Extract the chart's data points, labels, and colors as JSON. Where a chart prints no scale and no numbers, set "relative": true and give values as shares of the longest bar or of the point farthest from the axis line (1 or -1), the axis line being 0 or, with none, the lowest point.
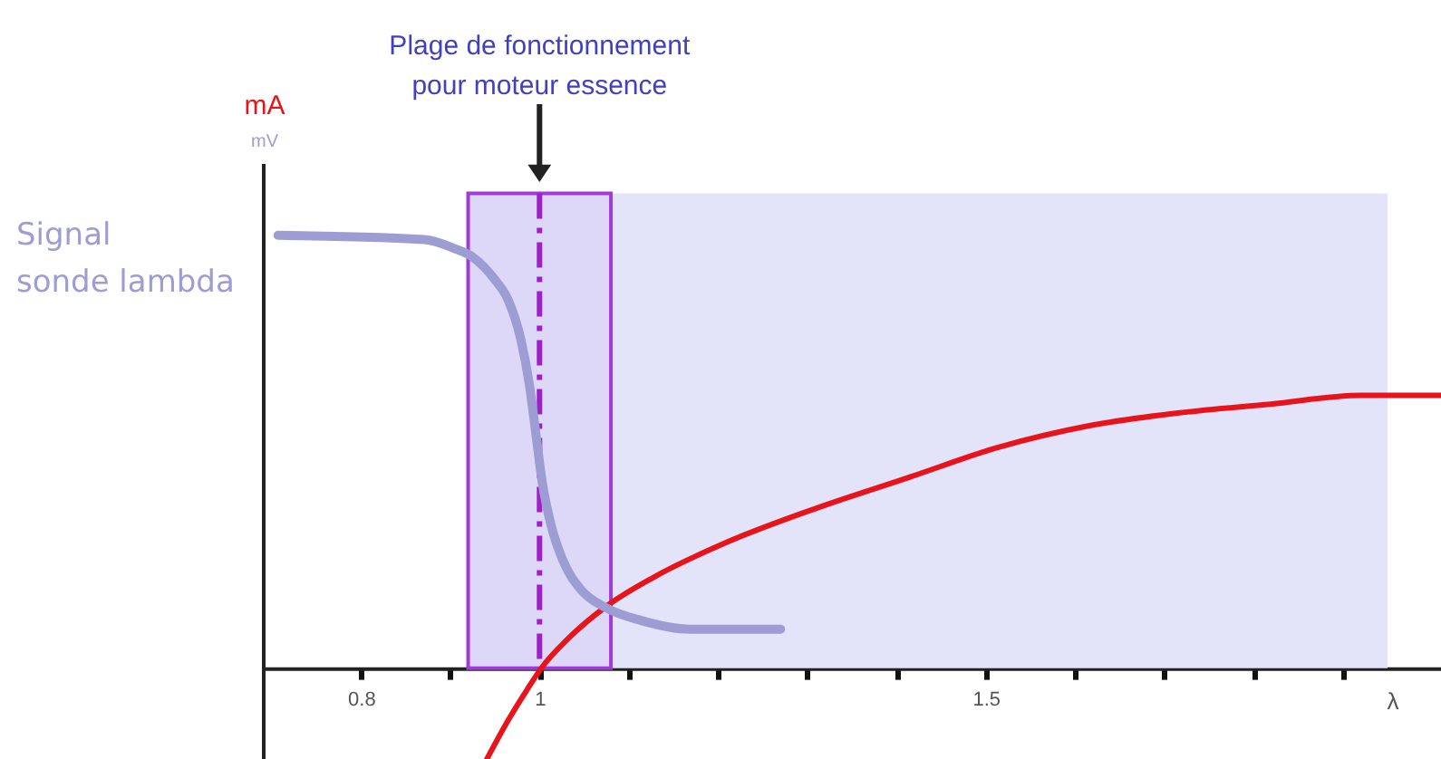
{
  "chart_data": {
    "type": "line",
    "relative": true,
    "xlabel": "λ",
    "annotations": [
      "Plage de fonctionnement pour moteur essence",
      "mA",
      "mV"
    ],
    "xlim": [
      0.69,
      2.01
    ],
    "xticks": [
      0.8,
      {
        "value": 0.9,
        "label": null
      },
      1,
      {
        "value": 1.1,
        "label": null
      },
      {
        "value": 1.2,
        "label": null
      },
      {
        "value": 1.3,
        "label": null
      },
      {
        "value": 1.4,
        "label": null
      },
      1.5,
      {
        "value": 1.6,
        "label": null
      },
      {
        "value": 1.7,
        "label": null
      },
      {
        "value": 1.8,
        "label": null
      },
      {
        "value": 1.9,
        "label": null
      }
    ],
    "series": [
      {
        "color": "#e8141b",
        "x": [
          0.941,
          0.965,
          0.986,
          1.002,
          1.033,
          1.073,
          1.128,
          1.209,
          1.311,
          1.413,
          1.514,
          1.616,
          1.717,
          1.819,
          1.921,
          2.01
        ],
        "values": [
          -0.21,
          -0.12,
          -0.05,
          0,
          0.07,
          0.14,
          0.21,
          0.29,
          0.37,
          0.44,
          0.51,
          0.56,
          0.59,
          0.61,
          0.63,
          0.63
        ]
      },
      {
        "name": "Signal sonde lambda",
        "color": "#9d9dd4",
        "x": [
          0.707,
          0.871,
          0.904,
          0.925,
          0.949,
          0.965,
          0.979,
          0.989,
          0.996,
          1.003,
          1.013,
          1.026,
          1.047,
          1.074,
          1.114,
          1.169,
          1.27
        ],
        "values": [
          1.0,
          0.99,
          0.97,
          0.95,
          0.9,
          0.85,
          0.76,
          0.65,
          0.54,
          0.43,
          0.33,
          0.25,
          0.18,
          0.14,
          0.11,
          0.09,
          0.09
        ]
      }
    ],
    "bands": [
      {
        "axis": "x",
        "from": 0.92,
        "to": 1.95,
        "color": "#e3e3fa"
      },
      {
        "axis": "x",
        "from": 0.92,
        "to": 1.08,
        "color": "#a13bd6"
      }
    ],
    "ref_lines": [
      {
        "axis": "x",
        "value": 1,
        "color": "#a020c8",
        "line_style": "dashed"
      }
    ]
  }
}
